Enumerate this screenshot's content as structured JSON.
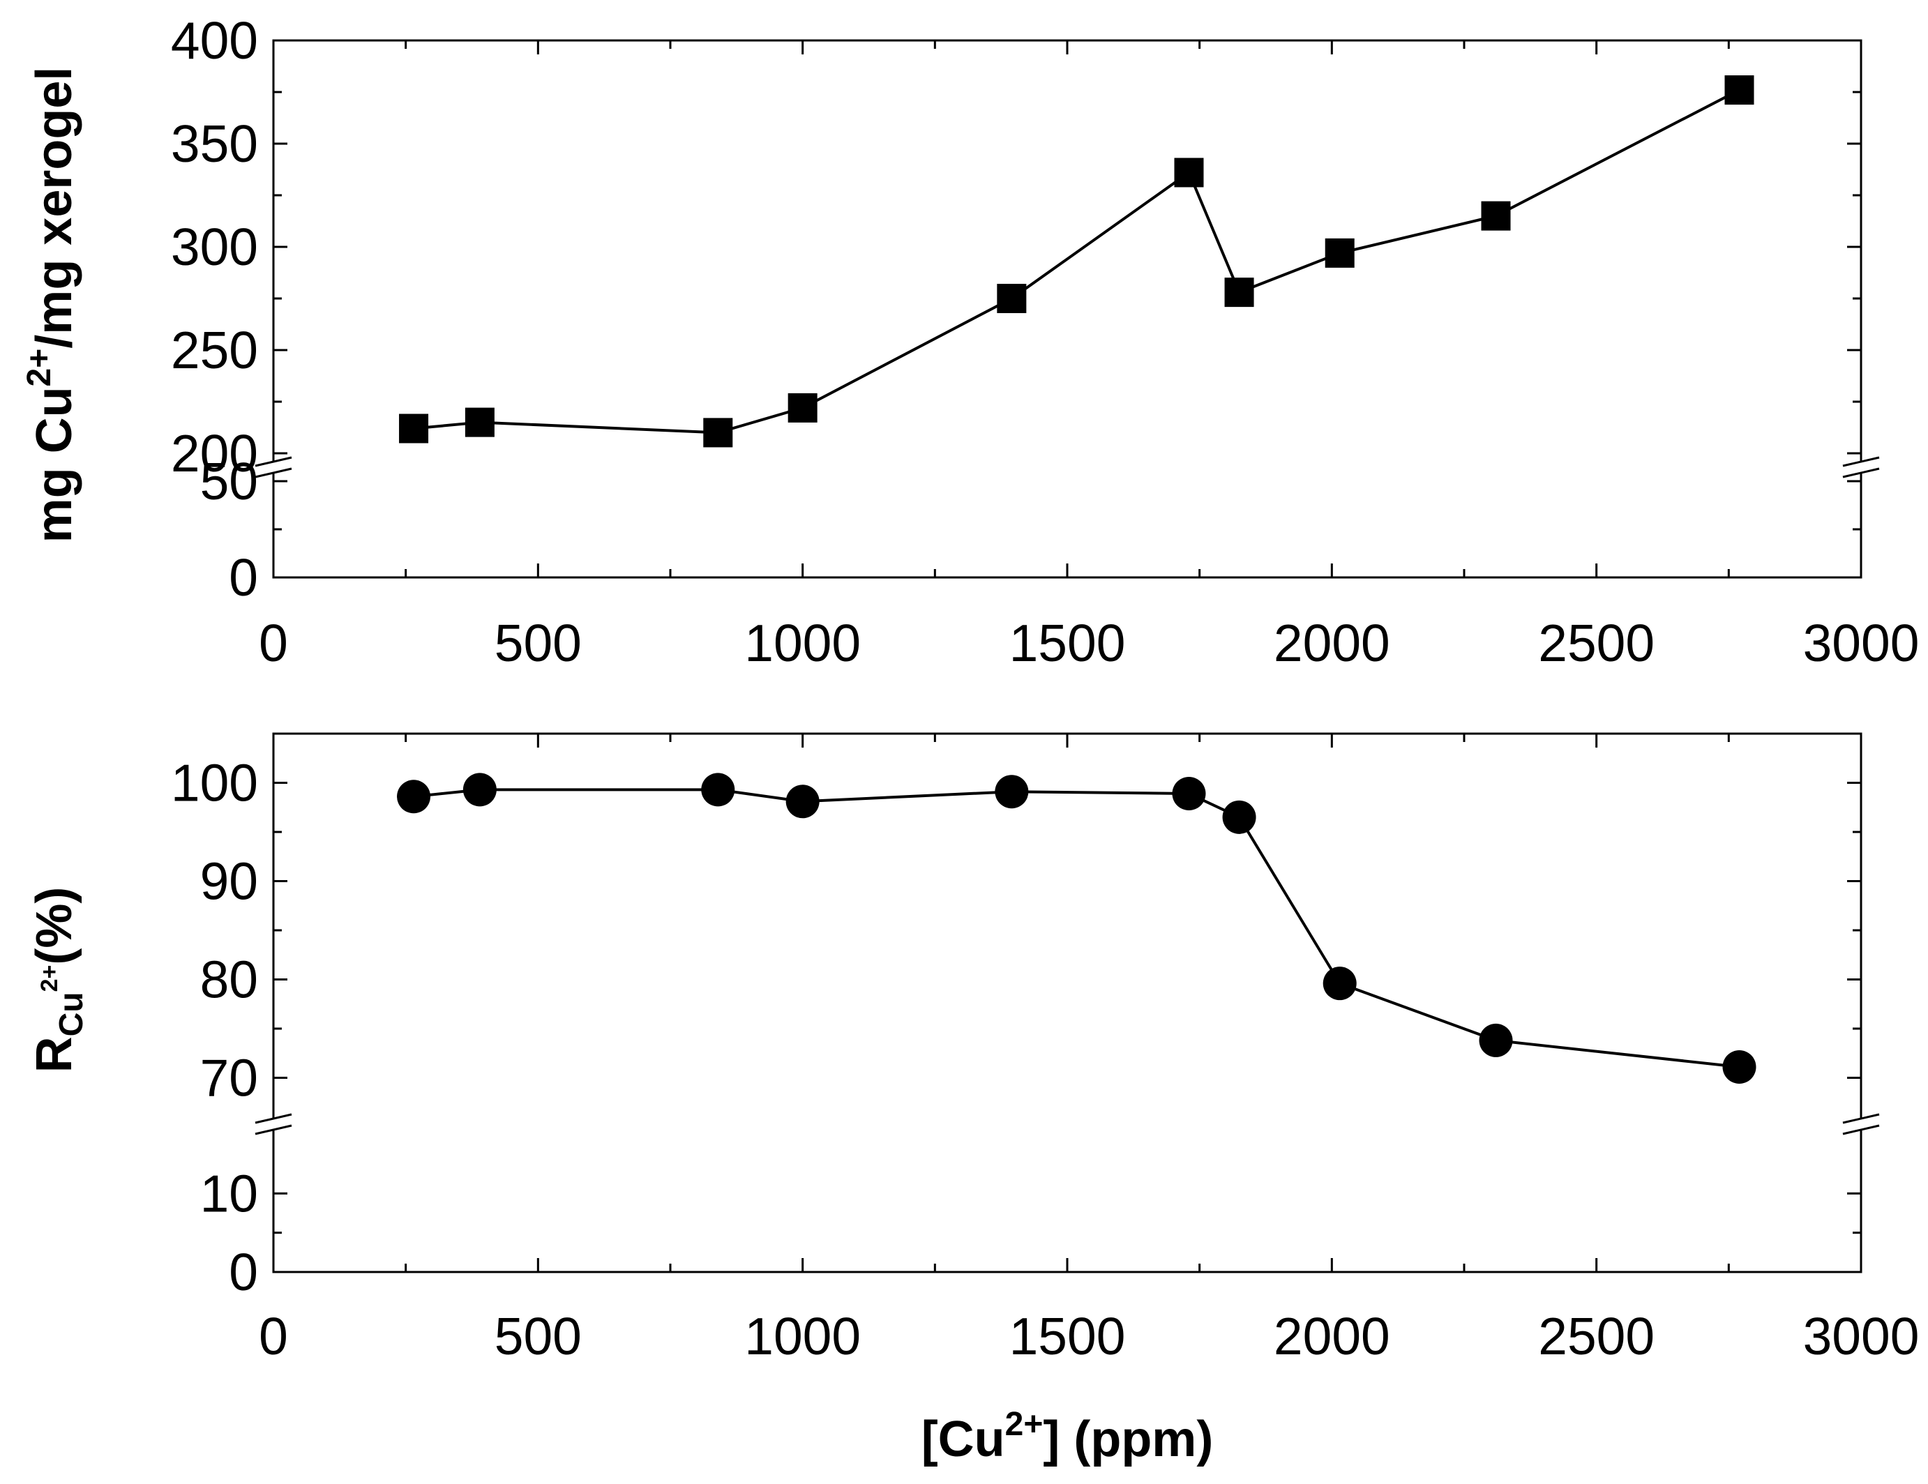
{
  "chart_data": [
    {
      "type": "line",
      "marker": "square",
      "x": [
        265,
        390,
        840,
        1000,
        1395,
        1730,
        1825,
        2015,
        2310,
        2770
      ],
      "y": [
        212,
        215,
        210,
        222,
        275,
        336,
        278,
        297,
        315,
        376
      ],
      "xlim": [
        0,
        3000
      ],
      "ylim_lower": [
        0,
        50
      ],
      "ylim_upper": [
        200,
        400
      ],
      "axis_break": [
        50,
        200
      ],
      "xticks": [
        "0",
        "500",
        "1000",
        "1500",
        "2000",
        "2500",
        "3000"
      ],
      "yticks_lower": [
        "0",
        "50"
      ],
      "yticks_upper": [
        "200",
        "250",
        "300",
        "350",
        "400"
      ],
      "ylabel_prefix": "mg Cu",
      "ylabel_sup": "2+",
      "ylabel_suffix": "/mg xerogel",
      "xlabel": ""
    },
    {
      "type": "line",
      "marker": "circle",
      "x": [
        265,
        390,
        840,
        1000,
        1395,
        1730,
        1825,
        2015,
        2310,
        2770
      ],
      "y": [
        98.6,
        99.3,
        99.3,
        98.1,
        99.1,
        98.9,
        96.5,
        79.6,
        73.8,
        71.1
      ],
      "xlim": [
        0,
        3000
      ],
      "ylim_lower": [
        0,
        15
      ],
      "ylim_upper": [
        65,
        105
      ],
      "axis_break": [
        15,
        65
      ],
      "xticks": [
        "0",
        "500",
        "1000",
        "1500",
        "2000",
        "2500",
        "3000"
      ],
      "yticks_lower": [
        "0",
        "10"
      ],
      "yticks_upper": [
        "70",
        "80",
        "90",
        "100"
      ],
      "ylabel_main": "R",
      "ylabel_sub": "Cu",
      "ylabel_subsup": "2+",
      "ylabel_suffix": "(%)",
      "xlabel_prefix": "[Cu",
      "xlabel_sup": "2+",
      "xlabel_suffix": "] (ppm)"
    }
  ]
}
